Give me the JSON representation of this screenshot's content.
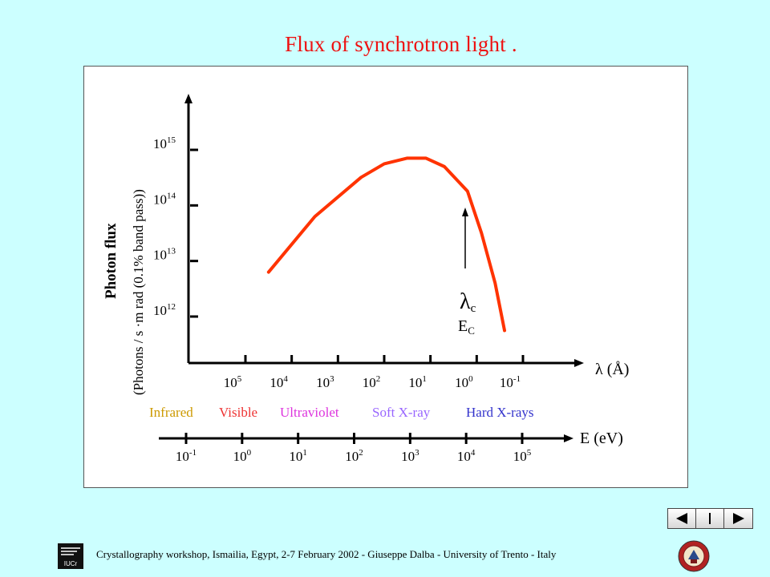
{
  "slide": {
    "title": "Flux of synchrotron  light ."
  },
  "footer": {
    "text": "Crystallography workshop, Ismailia,  Egypt, 2-7 February  2002 - Giuseppe Dalba -  University of Trento - Italy",
    "logo_left_text": "IUCr"
  },
  "chart_data": {
    "type": "line",
    "title": "",
    "ylabel": "Photon flux",
    "ylabel_sub": "(Photons / s ·m rad  (0.1% band pass))",
    "y_axis": {
      "scale": "log",
      "ticks": [
        {
          "base": "10",
          "exp": "12",
          "value": 1000000000000.0
        },
        {
          "base": "10",
          "exp": "13",
          "value": 10000000000000.0
        },
        {
          "base": "10",
          "exp": "14",
          "value": 100000000000000.0
        },
        {
          "base": "10",
          "exp": "15",
          "value": 1000000000000000.0
        }
      ]
    },
    "x_axis_wavelength": {
      "label": "λ (Å)",
      "scale": "log",
      "reversed": true,
      "ticks": [
        {
          "base": "10",
          "exp": "5",
          "value": 100000
        },
        {
          "base": "10",
          "exp": "4",
          "value": 10000
        },
        {
          "base": "10",
          "exp": "3",
          "value": 1000
        },
        {
          "base": "10",
          "exp": "2",
          "value": 100
        },
        {
          "base": "10",
          "exp": "1",
          "value": 10
        },
        {
          "base": "10",
          "exp": "0",
          "value": 1
        },
        {
          "base": "10",
          "exp": "-1",
          "value": 0.1
        }
      ]
    },
    "x_axis_energy": {
      "label": "E (eV)",
      "scale": "log",
      "ticks": [
        {
          "base": "10",
          "exp": "-1",
          "value": 0.1
        },
        {
          "base": "10",
          "exp": "0",
          "value": 1
        },
        {
          "base": "10",
          "exp": "1",
          "value": 10
        },
        {
          "base": "10",
          "exp": "2",
          "value": 100
        },
        {
          "base": "10",
          "exp": "3",
          "value": 1000
        },
        {
          "base": "10",
          "exp": "4",
          "value": 10000
        },
        {
          "base": "10",
          "exp": "5",
          "value": 100000
        }
      ]
    },
    "regions": [
      {
        "label": "Infrared",
        "color": "#cc9900"
      },
      {
        "label": "Visible",
        "color": "#ee3333"
      },
      {
        "label": "Ultraviolet",
        "color": "#dd33dd"
      },
      {
        "label": "Soft X-ray",
        "color": "#9966ff"
      },
      {
        "label": "Hard X-rays",
        "color": "#3333cc"
      }
    ],
    "series": [
      {
        "color": "#ff3300",
        "points": [
          {
            "wavelength": 31600,
            "flux": 6300000000000.0
          },
          {
            "wavelength": 3160,
            "flux": 63000000000000.0
          },
          {
            "wavelength": 316,
            "flux": 320000000000000.0
          },
          {
            "wavelength": 100,
            "flux": 560000000000000.0
          },
          {
            "wavelength": 31.6,
            "flux": 710000000000000.0
          },
          {
            "wavelength": 12.6,
            "flux": 710000000000000.0
          },
          {
            "wavelength": 5.0,
            "flux": 500000000000000.0
          },
          {
            "wavelength": 1.58,
            "flux": 180000000000000.0
          },
          {
            "wavelength": 0.79,
            "flux": 32000000000000.0
          },
          {
            "wavelength": 0.4,
            "flux": 4000000000000.0
          },
          {
            "wavelength": 0.25,
            "flux": 560000000000.0
          }
        ]
      }
    ],
    "annotation": {
      "lambda_c": "λ",
      "lambda_c_sub": "c",
      "e_c": "E",
      "e_c_sub": "C"
    },
    "colors": {
      "axis": "#000000",
      "curve": "#ff3300",
      "title": "#ee1111",
      "background": "#ccffff"
    }
  }
}
